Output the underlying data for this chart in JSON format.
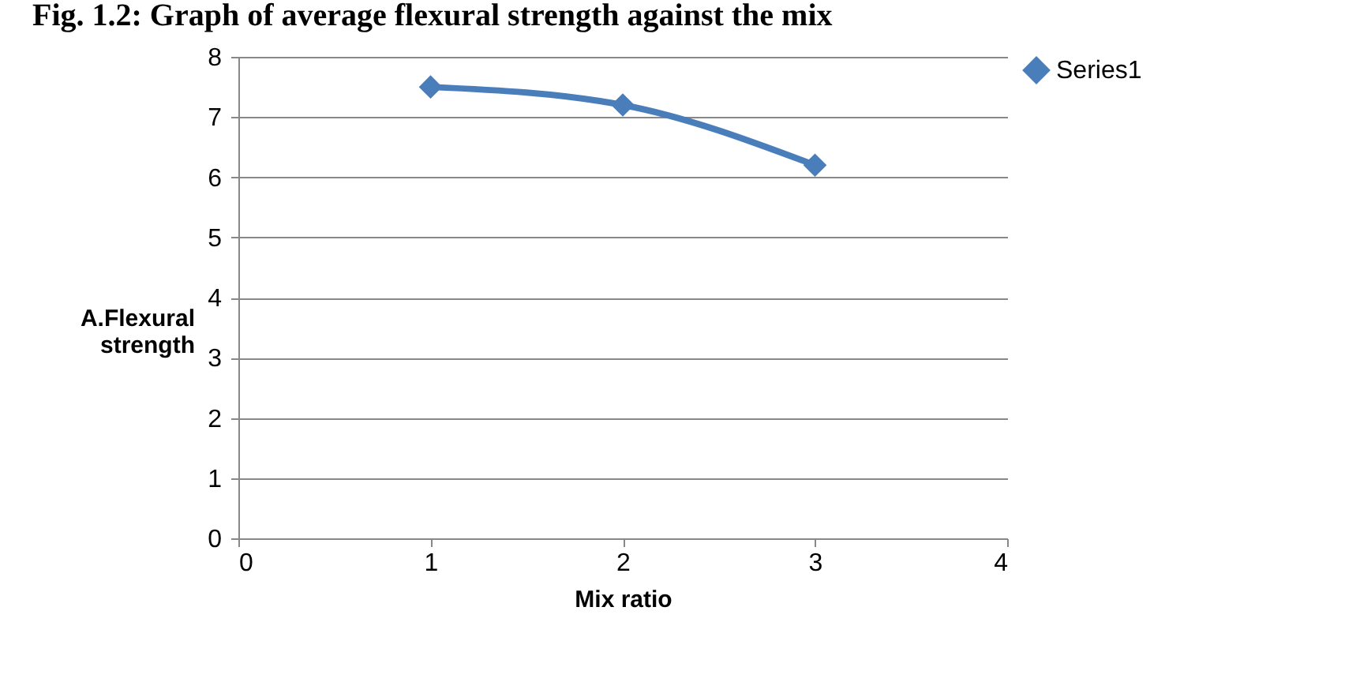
{
  "chart_data": {
    "type": "line",
    "title": "Fig. 1.2: Graph of average flexural strength against the mix",
    "xlabel": "Mix ratio",
    "ylabel": "A.Flexural strength",
    "x": [
      1,
      2,
      3
    ],
    "series": [
      {
        "name": "Series1",
        "color": "#4a7ebb",
        "values": [
          7.5,
          7.2,
          6.2
        ]
      }
    ],
    "xlim": [
      0,
      4
    ],
    "xticks": [
      0,
      1,
      2,
      3,
      4
    ],
    "ylim": [
      0,
      8
    ],
    "yticks": [
      0,
      1,
      2,
      3,
      4,
      5,
      6,
      7,
      8
    ],
    "grid": "y",
    "legend": "right",
    "marker": "diamond",
    "line_style": "solid"
  }
}
